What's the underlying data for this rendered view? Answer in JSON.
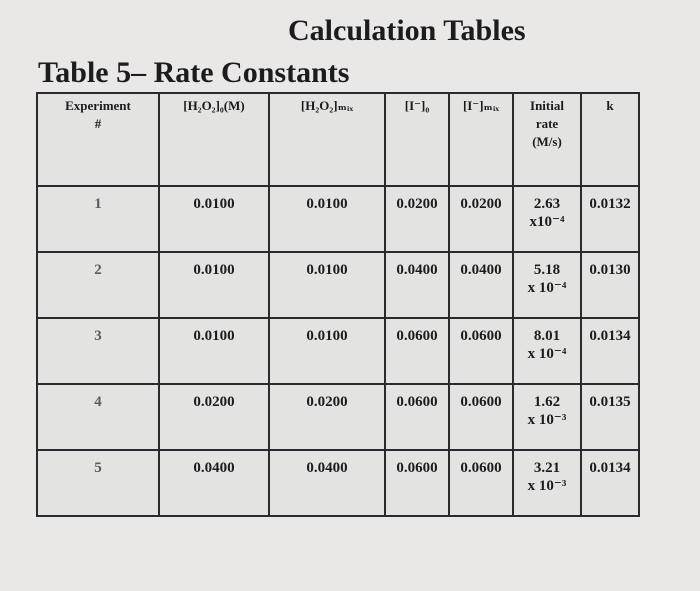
{
  "heading": "Calculation Tables",
  "table_title": "Table 5– Rate Constants",
  "columns": [
    {
      "line1": "Experiment",
      "line2": "#"
    },
    {
      "line1": "[H₂O₂]₀(M)",
      "line2": ""
    },
    {
      "line1": "[H₂O₂]ₘᵢₓ",
      "line2": ""
    },
    {
      "line1": "[I⁻]₀",
      "line2": ""
    },
    {
      "line1": "[I⁻]ₘᵢₓ",
      "line2": ""
    },
    {
      "line1": "Initial",
      "line2": "rate",
      "line3": "(M/s)"
    },
    {
      "line1": "k",
      "line2": ""
    }
  ],
  "rows": [
    {
      "exp": "1",
      "h2o2_0": "0.0100",
      "h2o2_mix": "0.0100",
      "i_0": "0.0200",
      "i_mix": "0.0200",
      "rate_l1": "2.63",
      "rate_l2": "x10⁻⁴",
      "k": "0.0132"
    },
    {
      "exp": "2",
      "h2o2_0": "0.0100",
      "h2o2_mix": "0.0100",
      "i_0": "0.0400",
      "i_mix": "0.0400",
      "rate_l1": "5.18",
      "rate_l2": "x 10⁻⁴",
      "k": "0.0130"
    },
    {
      "exp": "3",
      "h2o2_0": "0.0100",
      "h2o2_mix": "0.0100",
      "i_0": "0.0600",
      "i_mix": "0.0600",
      "rate_l1": "8.01",
      "rate_l2": "x 10⁻⁴",
      "k": "0.0134"
    },
    {
      "exp": "4",
      "h2o2_0": "0.0200",
      "h2o2_mix": "0.0200",
      "i_0": "0.0600",
      "i_mix": "0.0600",
      "rate_l1": "1.62",
      "rate_l2": "x 10⁻³",
      "k": "0.0135"
    },
    {
      "exp": "5",
      "h2o2_0": "0.0400",
      "h2o2_mix": "0.0400",
      "i_0": "0.0600",
      "i_mix": "0.0600",
      "rate_l1": "3.21",
      "rate_l2": "x 10⁻³",
      "k": "0.0134"
    }
  ]
}
